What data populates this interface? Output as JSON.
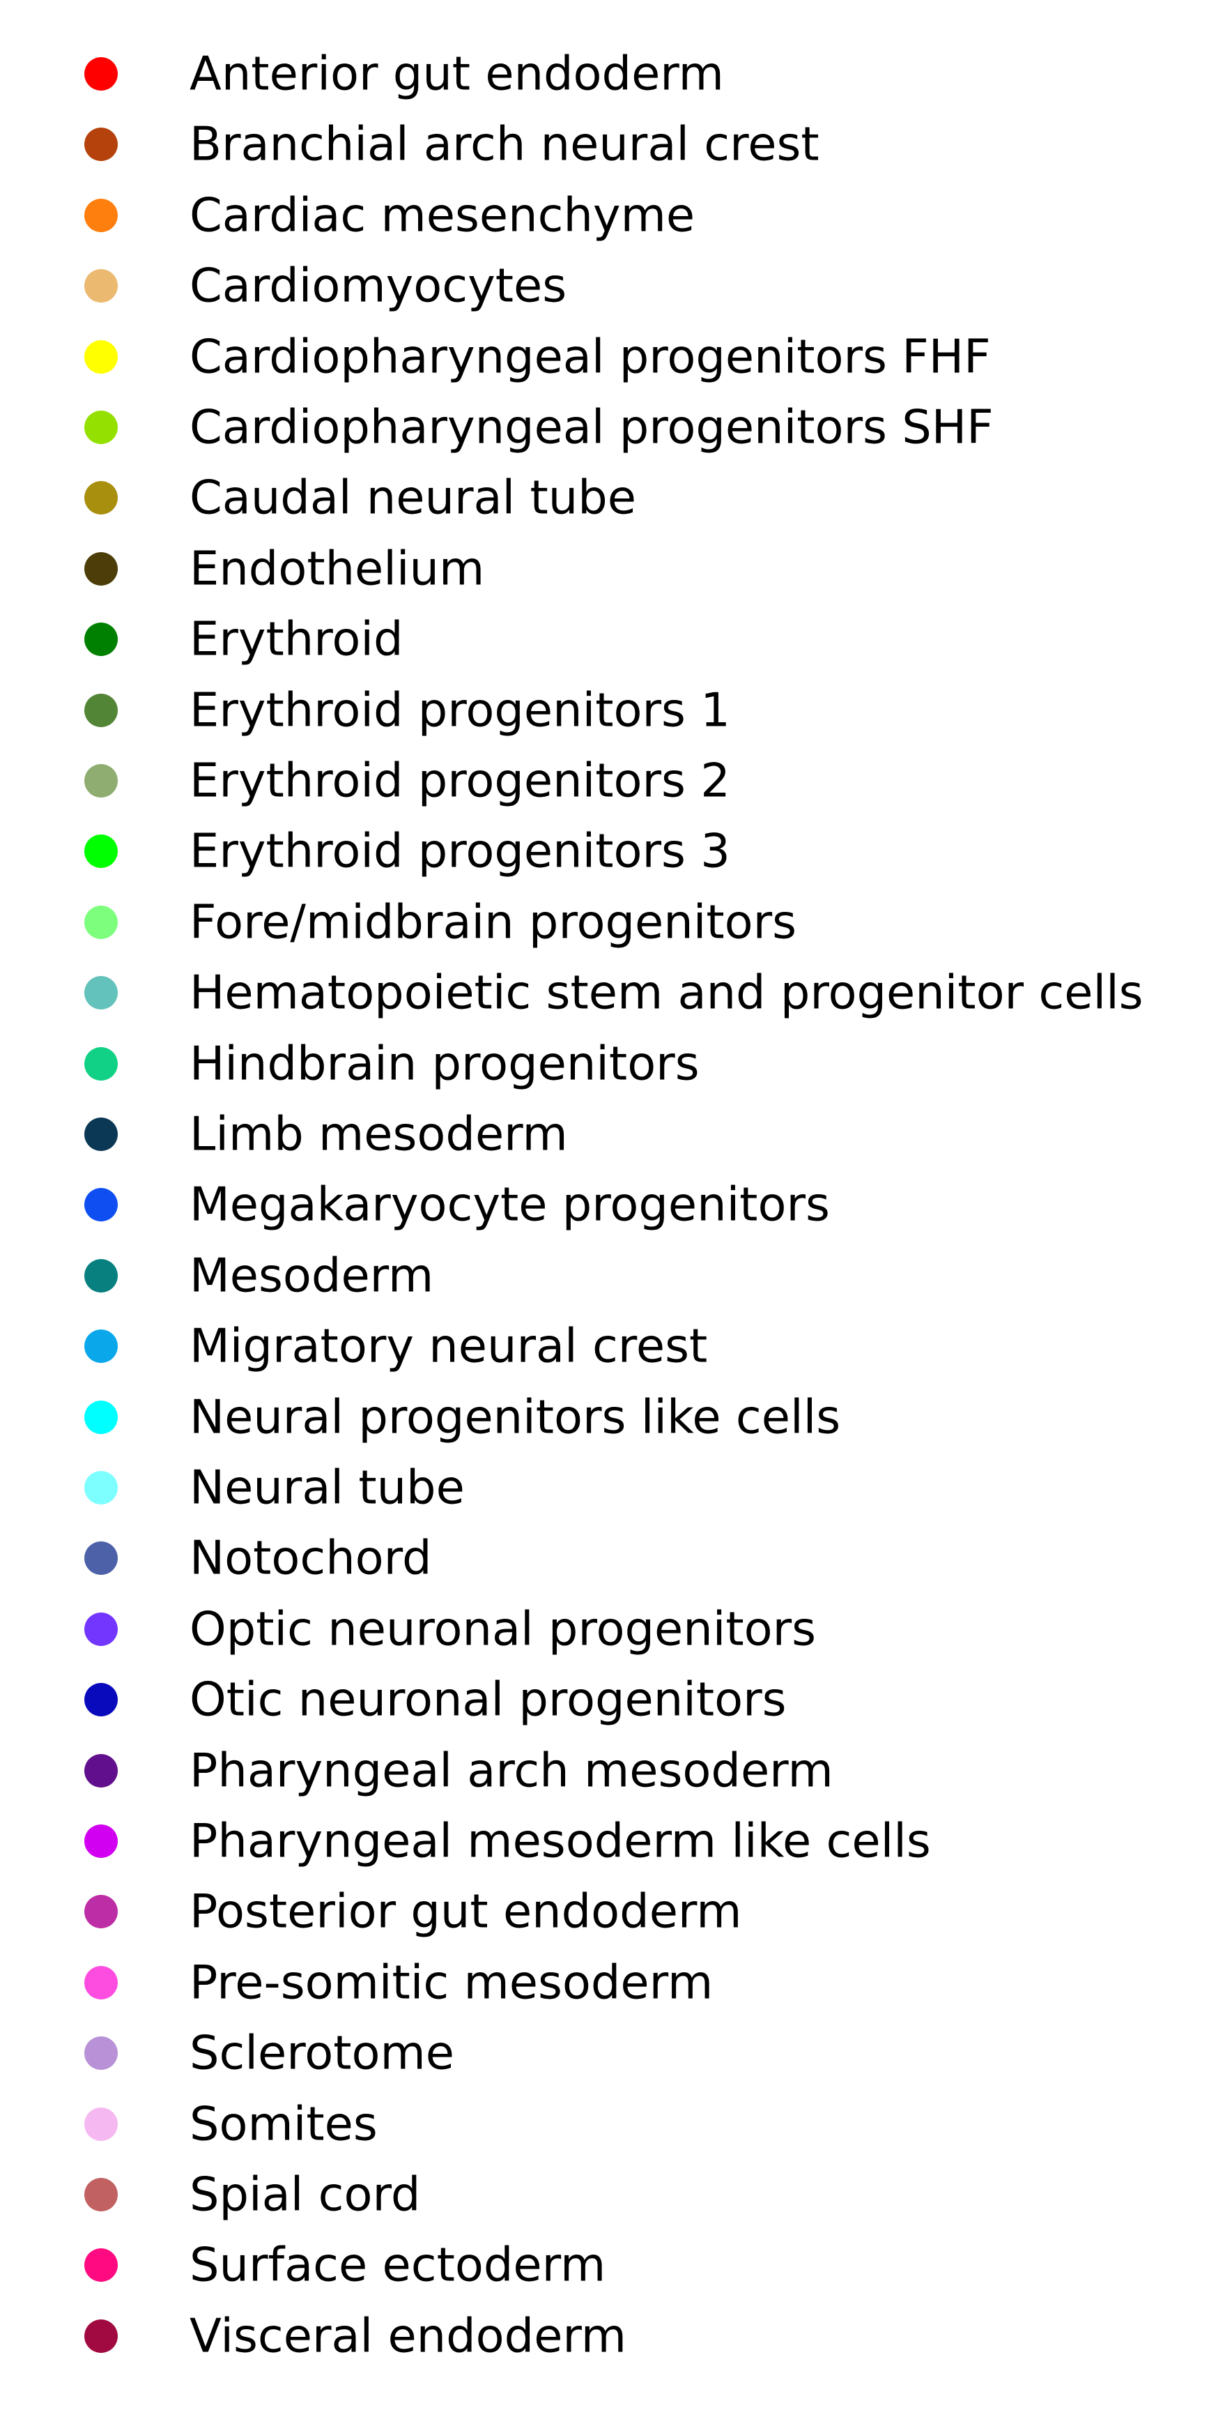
{
  "chart_data": {
    "type": "legend",
    "legend": [
      {
        "label": "Anterior gut endoderm",
        "color": "#ff0000"
      },
      {
        "label": "Branchial arch neural crest",
        "color": "#b5420c"
      },
      {
        "label": "Cardiac mesenchyme",
        "color": "#ff7f0e"
      },
      {
        "label": "Cardiomyocytes",
        "color": "#ebb970"
      },
      {
        "label": "Cardiopharyngeal progenitors FHF",
        "color": "#ffff00"
      },
      {
        "label": "Cardiopharyngeal progenitors SHF",
        "color": "#94e000"
      },
      {
        "label": "Caudal neural tube",
        "color": "#a88f0d"
      },
      {
        "label": "Endothelium",
        "color": "#4d3d09"
      },
      {
        "label": "Erythroid",
        "color": "#008000"
      },
      {
        "label": "Erythroid progenitors 1",
        "color": "#538537"
      },
      {
        "label": "Erythroid progenitors 2",
        "color": "#8fad70"
      },
      {
        "label": "Erythroid progenitors 3",
        "color": "#00ff00"
      },
      {
        "label": "Fore/midbrain progenitors",
        "color": "#7dff7d"
      },
      {
        "label": "Hematopoietic stem and progenitor cells",
        "color": "#63c2bb"
      },
      {
        "label": "Hindbrain progenitors",
        "color": "#10d185"
      },
      {
        "label": "Limb mesoderm",
        "color": "#0b3854"
      },
      {
        "label": "Megakaryocyte progenitors",
        "color": "#0f4ff2"
      },
      {
        "label": "Mesoderm",
        "color": "#088080"
      },
      {
        "label": "Migratory neural crest",
        "color": "#0aa8eb"
      },
      {
        "label": "Neural progenitors like cells",
        "color": "#00ffff"
      },
      {
        "label": "Neural tube",
        "color": "#7dffff"
      },
      {
        "label": "Notochord",
        "color": "#4d61a8"
      },
      {
        "label": "Optic neuronal progenitors",
        "color": "#7336ff"
      },
      {
        "label": "Otic neuronal progenitors",
        "color": "#0a0abd"
      },
      {
        "label": "Pharyngeal arch mesoderm",
        "color": "#610f8c"
      },
      {
        "label": "Pharyngeal mesoderm like cells",
        "color": "#d100f0"
      },
      {
        "label": "Posterior gut endoderm",
        "color": "#bd2ea6"
      },
      {
        "label": "Pre-somitic mesoderm",
        "color": "#fc4de0"
      },
      {
        "label": "Sclerotome",
        "color": "#b891d6"
      },
      {
        "label": "Somites",
        "color": "#f5b8f0"
      },
      {
        "label": "Spial cord",
        "color": "#c26161"
      },
      {
        "label": "Surface ectoderm",
        "color": "#ff0a80"
      },
      {
        "label": "Visceral endoderm",
        "color": "#a10a40"
      }
    ]
  }
}
